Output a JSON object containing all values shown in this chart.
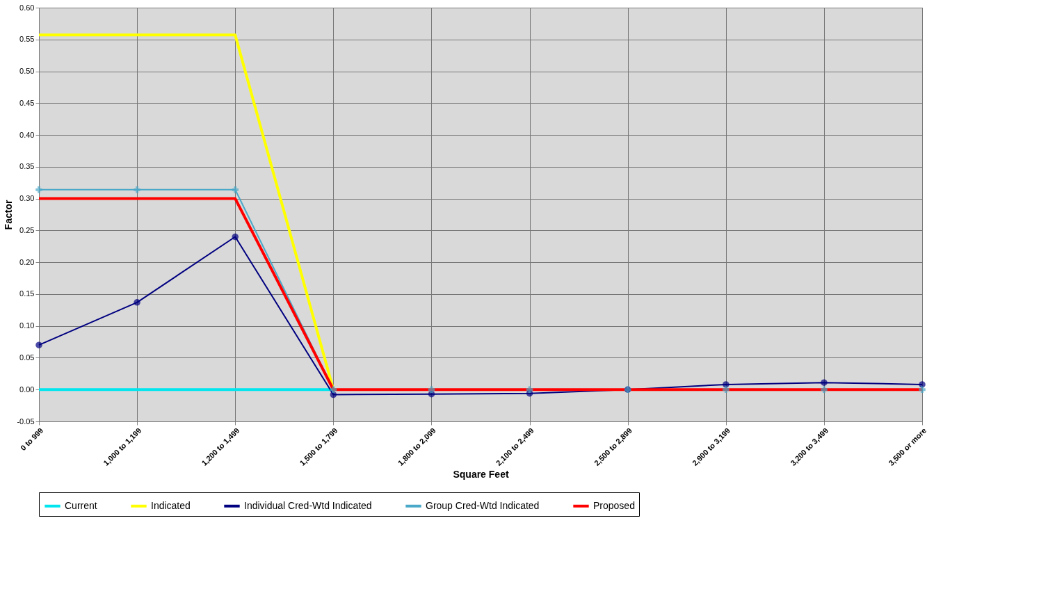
{
  "chart_data": {
    "type": "line",
    "xlabel": "Square Feet",
    "ylabel": "Factor",
    "categories": [
      "0 to 999",
      "1,000 to 1,199",
      "1,200 to 1,499",
      "1,500 to 1,799",
      "1,800 to 2,099",
      "2,100 to 2,499",
      "2,500 to 2,899",
      "2,900 to 3,199",
      "3,200 to 3,499",
      "3,500 or more"
    ],
    "ylim": [
      -0.05,
      0.6
    ],
    "yticks": [
      -0.05,
      {
        "value": 0,
        "label": "0.00"
      },
      0.05,
      {
        "value": 0.1,
        "label": "0.10"
      },
      0.15,
      {
        "value": 0.2,
        "label": "0.20"
      },
      0.25,
      {
        "value": 0.3,
        "label": "0.30"
      },
      0.35,
      {
        "value": 0.4,
        "label": "0.40"
      },
      0.45,
      {
        "value": 0.5,
        "label": "0.50"
      },
      0.55,
      {
        "value": 0.6,
        "label": "0.60"
      }
    ],
    "grid": true,
    "legend": "bottom",
    "series": [
      {
        "name": "Current",
        "color": "#00e5ee",
        "marker": "none",
        "values": [
          0,
          0,
          0,
          0,
          null,
          null,
          null,
          null,
          null,
          null
        ]
      },
      {
        "name": "Indicated",
        "color": "#ffff00",
        "marker": "none",
        "values": [
          0.557,
          0.557,
          0.557,
          0,
          null,
          null,
          null,
          null,
          null,
          null
        ]
      },
      {
        "name": "Individual Cred-Wtd Indicated",
        "color": "#000080",
        "marker": "circle",
        "values": [
          0.07,
          0.137,
          0.24,
          -0.008,
          -0.007,
          -0.006,
          0,
          0.008,
          0.011,
          0.008
        ]
      },
      {
        "name": "Group Cred-Wtd Indicated",
        "color": "#4aa8c8",
        "marker": "cross",
        "values": [
          0.314,
          0.314,
          0.314,
          0,
          0,
          0,
          0,
          0,
          0,
          0
        ]
      },
      {
        "name": "Proposed",
        "color": "#ff0000",
        "marker": "none",
        "values": [
          0.3,
          0.3,
          0.3,
          0,
          0,
          0,
          0,
          0,
          0,
          0
        ]
      }
    ]
  }
}
